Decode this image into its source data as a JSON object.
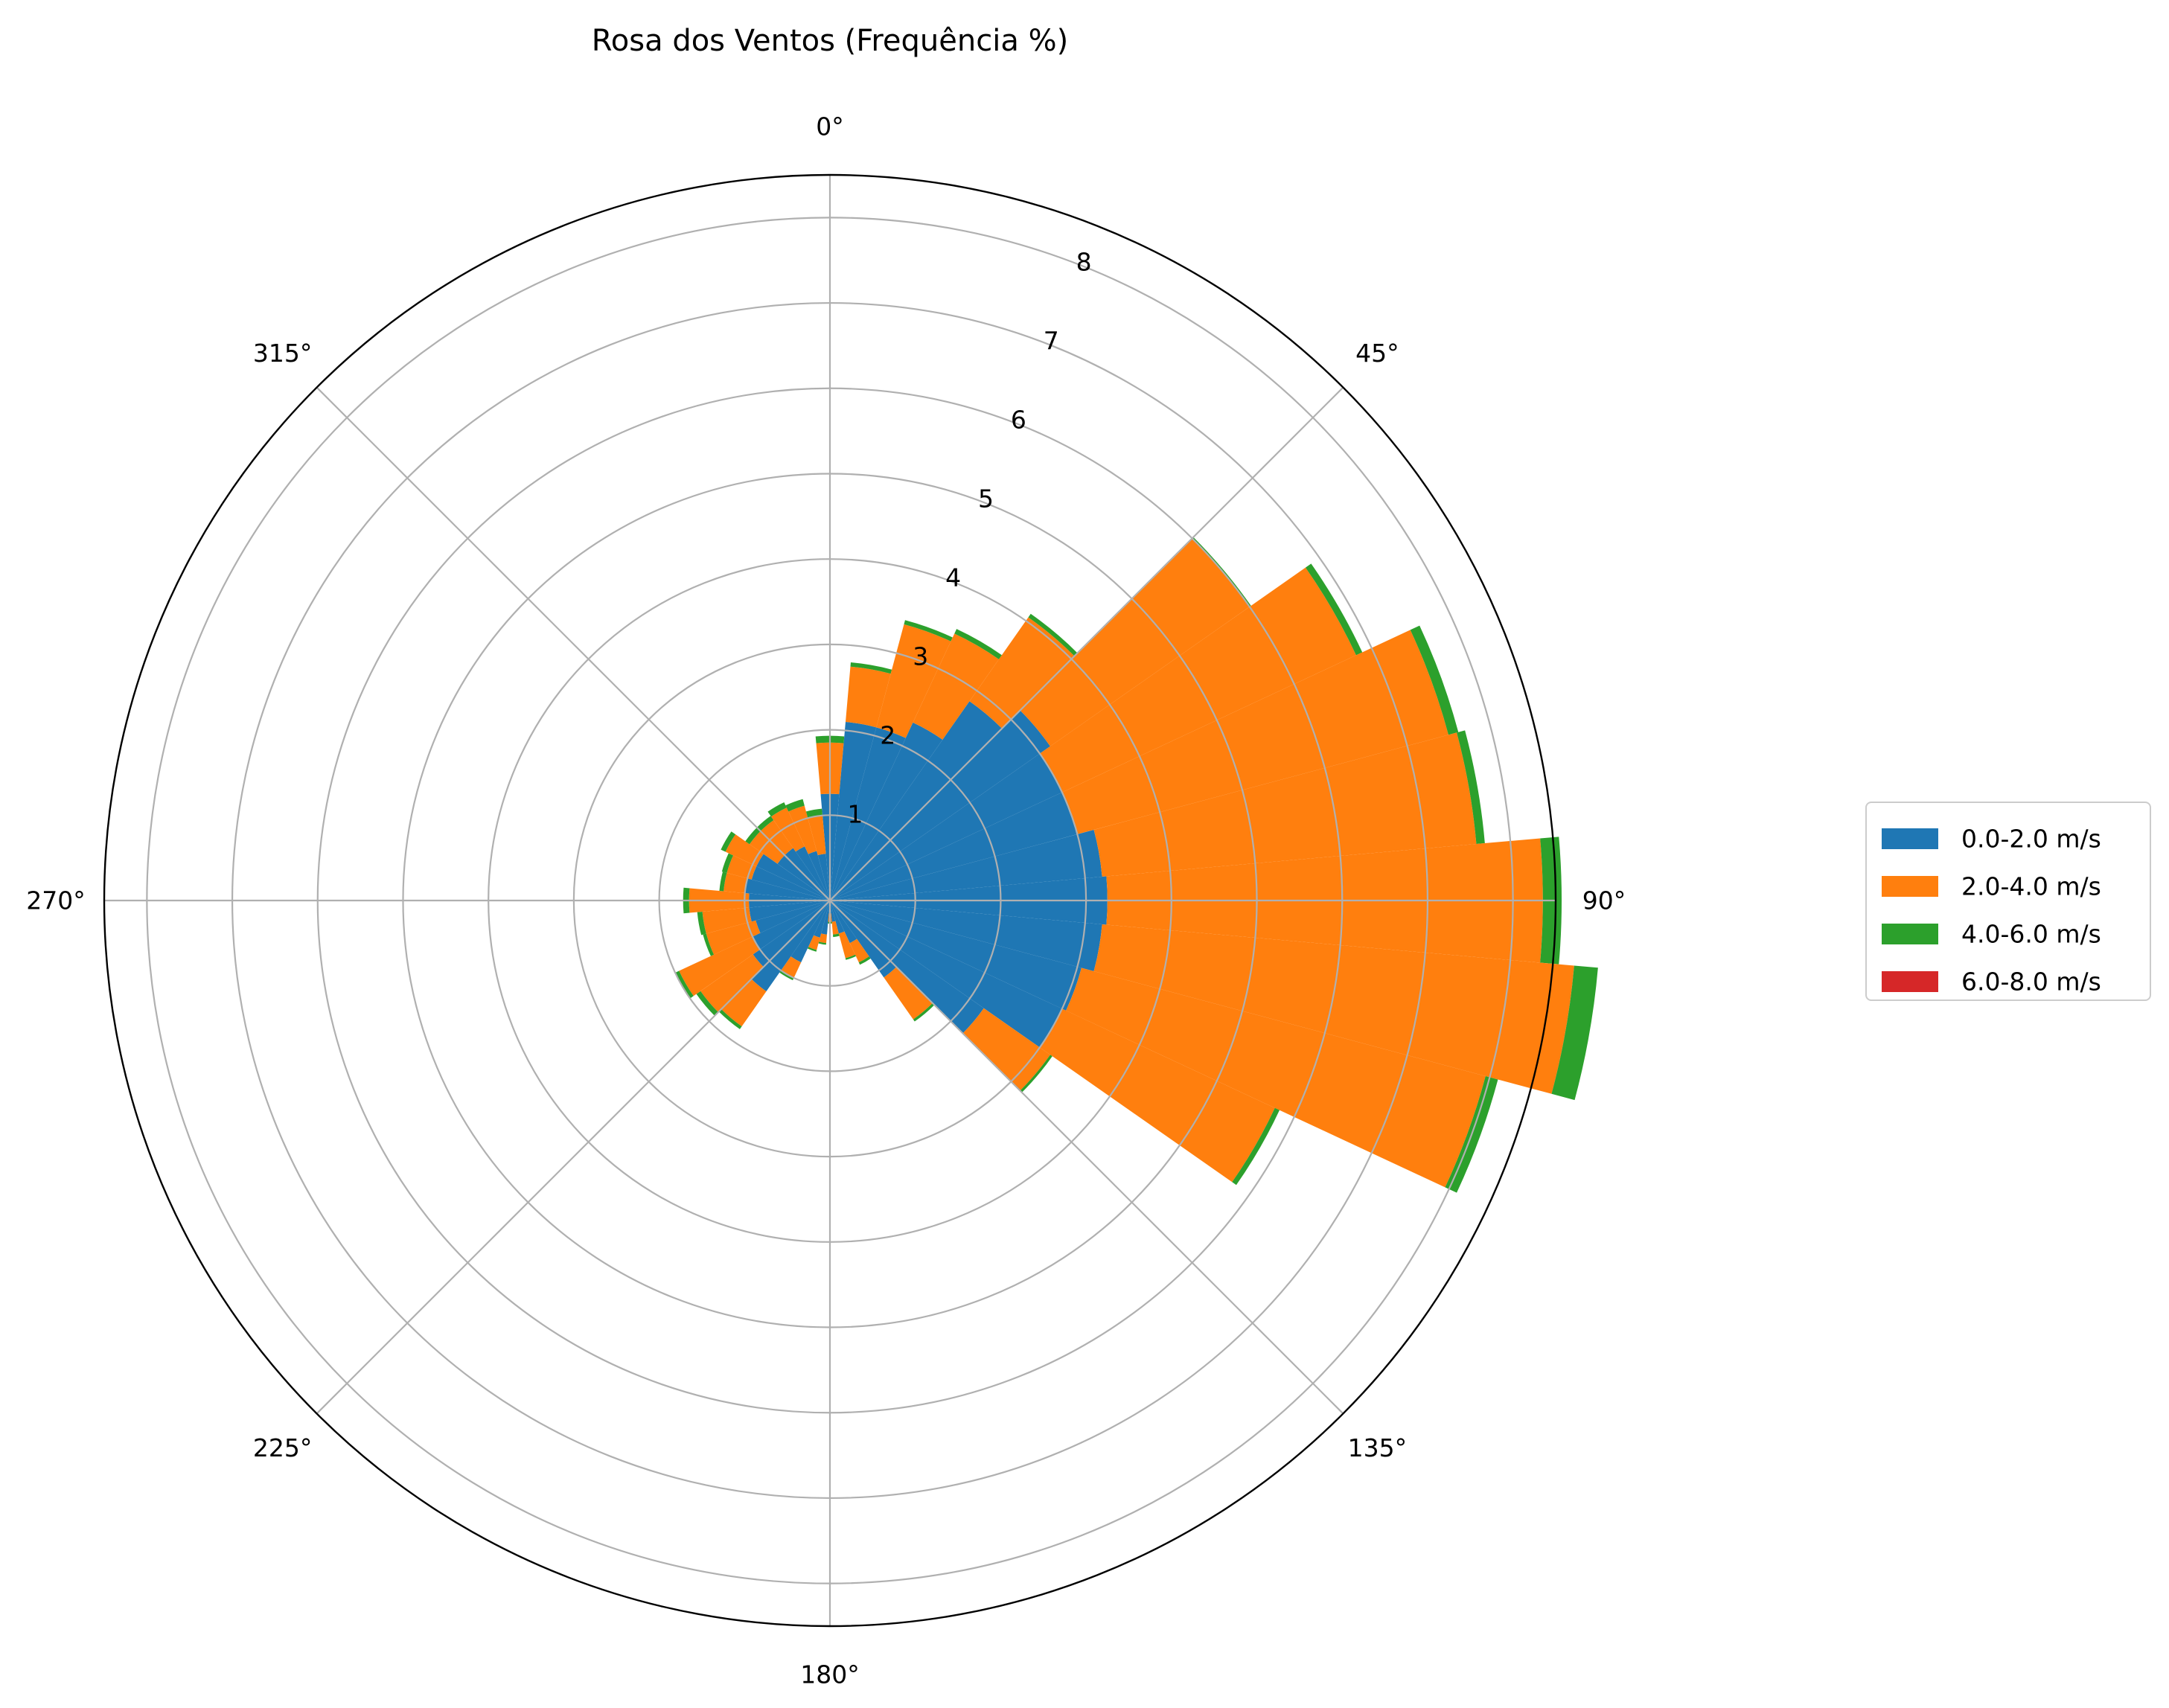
{
  "chart_data": {
    "type": "bar",
    "subtype": "polar-stacked-windrose",
    "title": "Rosa dos Ventos (Frequência %)",
    "angle_ticks": [
      "0°",
      "45°",
      "90°",
      "135°",
      "180°",
      "225°",
      "270°",
      "315°"
    ],
    "radial_ticks": [
      "1",
      "2",
      "3",
      "4",
      "5",
      "6",
      "7",
      "8"
    ],
    "rlim": [
      0,
      8.5
    ],
    "grid": true,
    "legend_position": "right",
    "direction_bin_deg": 10,
    "categories": [
      0,
      10,
      20,
      30,
      40,
      50,
      60,
      70,
      80,
      90,
      100,
      110,
      120,
      130,
      140,
      150,
      160,
      170,
      180,
      190,
      200,
      210,
      220,
      230,
      240,
      250,
      260,
      270,
      280,
      290,
      300,
      310,
      320,
      330,
      340,
      350
    ],
    "series": [
      {
        "name": "0.0-2.0 m/s",
        "color": "#1f77b4",
        "values": [
          1.25,
          2.1,
          2.1,
          2.3,
          2.85,
          3.15,
          3.0,
          3.0,
          3.2,
          3.25,
          3.2,
          3.05,
          3.0,
          2.2,
          1.1,
          0.55,
          0.4,
          0.25,
          0.15,
          0.4,
          0.45,
          0.8,
          1.3,
          1.1,
          1.0,
          0.9,
          0.95,
          0.95,
          1.0,
          0.95,
          0.95,
          0.75,
          0.75,
          0.7,
          0.6,
          0.55
        ]
      },
      {
        "name": "2.0-4.0 m/s",
        "color": "#ff7f0e",
        "values": [
          0.6,
          0.65,
          1.25,
          1.15,
          1.2,
          2.85,
          3.8,
          4.5,
          4.4,
          5.1,
          5.55,
          4.9,
          2.75,
          0.95,
          0.6,
          0.25,
          0.3,
          0.15,
          0.1,
          0.1,
          0.15,
          0.2,
          0.5,
          0.75,
          0.95,
          0.6,
          0.55,
          0.7,
          0.25,
          0.3,
          0.4,
          0.4,
          0.4,
          0.5,
          0.55,
          0.45
        ]
      },
      {
        "name": "4.0-6.0 m/s",
        "color": "#2ca02c",
        "values": [
          0.08,
          0.05,
          0.05,
          0.06,
          0.05,
          0.02,
          0.08,
          0.12,
          0.1,
          0.22,
          0.28,
          0.15,
          0.06,
          0.03,
          0.03,
          0.03,
          0.02,
          0.03,
          0.02,
          0.02,
          0.02,
          0.03,
          0.04,
          0.06,
          0.05,
          0.04,
          0.06,
          0.07,
          0.05,
          0.06,
          0.06,
          0.06,
          0.06,
          0.07,
          0.08,
          0.08
        ]
      },
      {
        "name": "6.0-8.0 m/s",
        "color": "#d62728",
        "values": [
          0,
          0,
          0,
          0,
          0,
          0,
          0,
          0,
          0,
          0,
          0,
          0,
          0,
          0,
          0,
          0,
          0,
          0,
          0,
          0,
          0,
          0,
          0,
          0,
          0,
          0,
          0,
          0,
          0,
          0,
          0,
          0,
          0,
          0,
          0,
          0
        ]
      }
    ]
  },
  "legend": {
    "items": [
      {
        "label": "0.0-2.0 m/s",
        "color": "#1f77b4"
      },
      {
        "label": "2.0-4.0 m/s",
        "color": "#ff7f0e"
      },
      {
        "label": "4.0-6.0 m/s",
        "color": "#2ca02c"
      },
      {
        "label": "6.0-8.0 m/s",
        "color": "#d62728"
      }
    ]
  },
  "colors": {
    "grid": "#b0b0b0",
    "frame": "#000000",
    "background": "#ffffff"
  }
}
